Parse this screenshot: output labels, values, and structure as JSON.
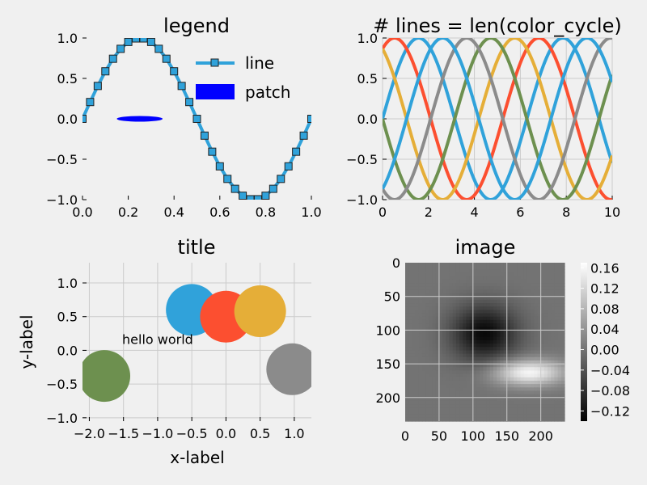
{
  "chart_data": [
    {
      "type": "line",
      "title": "legend",
      "xlim": [
        0,
        1
      ],
      "ylim": [
        -1,
        1
      ],
      "x_ticks": [
        0.0,
        0.2,
        0.4,
        0.6,
        0.8,
        1.0
      ],
      "y_ticks": [
        -1.0,
        -0.5,
        0.0,
        0.5,
        1.0
      ],
      "x_tick_labels": [
        "0.0",
        "0.2",
        "0.4",
        "0.6",
        "0.8",
        "1.0"
      ],
      "y_tick_labels": [
        "−1.0",
        "−0.5",
        "0.0",
        "0.5",
        "1.0"
      ],
      "series": [
        {
          "name": "line",
          "function": "sin(2*pi*x)",
          "x_start": 0,
          "x_end": 1,
          "samples": 31,
          "marker": "square",
          "color": "#30a2da"
        }
      ],
      "patches": [
        {
          "name": "patch",
          "shape": "ellipse",
          "center": [
            0.25,
            0.0
          ],
          "width": 0.2,
          "height": 0.07,
          "color": "#0000ff"
        }
      ],
      "legend": {
        "location": "top-right",
        "entries": [
          "line",
          "patch"
        ]
      },
      "grid": false
    },
    {
      "type": "line",
      "title": "# lines = len(color_cycle)",
      "xlim": [
        0,
        10
      ],
      "ylim": [
        -1,
        1
      ],
      "x_ticks": [
        0,
        2,
        4,
        6,
        8,
        10
      ],
      "y_ticks": [
        -1.0,
        -0.5,
        0.0,
        0.5,
        1.0
      ],
      "x_tick_labels": [
        "0",
        "2",
        "4",
        "6",
        "8",
        "10"
      ],
      "y_tick_labels": [
        "−1.0",
        "−0.5",
        "0.0",
        "0.5",
        "1.0"
      ],
      "series": [
        {
          "function": "sin(x + phase)",
          "phase": 0.0,
          "color": "#30a2da"
        },
        {
          "function": "sin(x + phase)",
          "phase": 1.0472,
          "color": "#fc4f30"
        },
        {
          "function": "sin(x + phase)",
          "phase": 2.0944,
          "color": "#e5ae38"
        },
        {
          "function": "sin(x + phase)",
          "phase": 3.1416,
          "color": "#6d904f"
        },
        {
          "function": "sin(x + phase)",
          "phase": 4.1888,
          "color": "#8b8b8b"
        },
        {
          "function": "sin(x + phase)",
          "phase": 5.236,
          "color": "#30a2da"
        }
      ],
      "grid": true
    },
    {
      "type": "scatter",
      "title": "title",
      "xlabel": "x-label",
      "ylabel": "y-label",
      "xlim": [
        -2.1,
        1.25
      ],
      "ylim": [
        -1.05,
        1.3
      ],
      "x_ticks": [
        -2.0,
        -1.5,
        -1.0,
        -0.5,
        0.0,
        0.5,
        1.0
      ],
      "y_ticks": [
        -1.0,
        -0.5,
        0.0,
        0.5,
        1.0
      ],
      "x_tick_labels": [
        "−2.0",
        "−1.5",
        "−1.0",
        "−0.5",
        "0.0",
        "0.5",
        "1.0"
      ],
      "y_tick_labels": [
        "−1.0",
        "−0.5",
        "0.0",
        "0.5",
        "1.0"
      ],
      "points": [
        {
          "x": -0.5,
          "y": 0.6,
          "color": "#30a2da"
        },
        {
          "x": 0.0,
          "y": 0.5,
          "color": "#fc4f30"
        },
        {
          "x": 0.5,
          "y": 0.58,
          "color": "#e5ae38"
        },
        {
          "x": -1.78,
          "y": -0.38,
          "color": "#6d904f"
        },
        {
          "x": 0.97,
          "y": -0.28,
          "color": "#8b8b8b"
        }
      ],
      "annotations": [
        {
          "text": "hello world",
          "x": -1.0,
          "y": 0.05
        }
      ],
      "grid": true
    },
    {
      "type": "heatmap",
      "title": "image",
      "xlim": [
        0,
        235
      ],
      "ylim": [
        235,
        0
      ],
      "x_ticks": [
        0,
        50,
        100,
        150,
        200
      ],
      "y_ticks": [
        0,
        50,
        100,
        150,
        200
      ],
      "x_tick_labels": [
        "0",
        "50",
        "100",
        "150",
        "200"
      ],
      "y_tick_labels": [
        "0",
        "50",
        "100",
        "150",
        "200"
      ],
      "blobs": [
        {
          "x": 117,
          "y": 105,
          "amplitude": -0.13
        },
        {
          "x": 182,
          "y": 163,
          "amplitude": 0.16
        }
      ],
      "colormap": "gray",
      "colorbar": {
        "range": [
          -0.14,
          0.17
        ],
        "ticks": [
          0.16,
          0.12,
          0.08,
          0.04,
          0.0,
          -0.04,
          -0.08,
          -0.12
        ],
        "tick_labels": [
          "0.16",
          "0.12",
          "0.08",
          "0.04",
          "0.00",
          "−0.04",
          "−0.08",
          "−0.12"
        ]
      },
      "grid": true
    }
  ]
}
